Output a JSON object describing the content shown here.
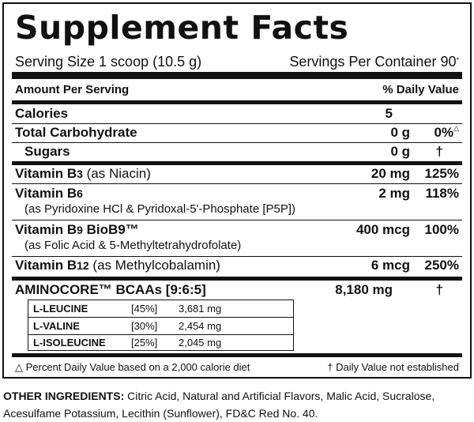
{
  "title": "Supplement Facts",
  "serving_size": "Serving Size 1 scoop (10.5 g)",
  "servings_per_container": "Servings Per Container 90",
  "servings_marker": "*",
  "header": {
    "amount_per_serving": "Amount Per Serving",
    "daily_value": "% Daily Value"
  },
  "rows": {
    "calories": {
      "name": "Calories",
      "amount": "5",
      "dv": ""
    },
    "carb": {
      "name": "Total Carbohydrate",
      "amount": "0 g",
      "dv": "0%",
      "dv_marker": "△"
    },
    "sugars": {
      "name": "Sugars",
      "amount": "0 g",
      "dv": "†"
    },
    "b3": {
      "name": "Vitamin B",
      "sub": "3",
      "detail": "(as Niacin)",
      "amount": "20 mg",
      "dv": "125%"
    },
    "b6": {
      "name": "Vitamin B",
      "sub": "6",
      "detail": "(as Pyridoxine HCl & Pyridoxal-5'-Phosphate [P5P])",
      "amount": "2 mg",
      "dv": "118%"
    },
    "b9": {
      "name": "Vitamin B",
      "sub": "9",
      "brand": "BioB9™",
      "detail": "(as Folic Acid & 5-Methyltetrahydrofolate)",
      "amount": "400 mcg",
      "dv": "100%"
    },
    "b12": {
      "name": "Vitamin B",
      "sub": "12",
      "detail": "(as Methylcobalamin)",
      "amount": "6 mcg",
      "dv": "250%"
    },
    "aminocore": {
      "name": "AMINOCORE™ BCAAs [9:6:5]",
      "amount": "8,180 mg",
      "dv": "†"
    }
  },
  "bcaas": [
    {
      "name": "L-LEUCINE",
      "percent": "[45%]",
      "amount": "3,681 mg"
    },
    {
      "name": "L-VALINE",
      "percent": "[30%]",
      "amount": "2,454 mg"
    },
    {
      "name": "L-ISOLEUCINE",
      "percent": "[25%]",
      "amount": "2,045 mg"
    }
  ],
  "footnotes": {
    "left": "△ Percent Daily Value based on a 2,000 calorie diet",
    "right": "† Daily Value not established"
  },
  "other_ingredients": {
    "label": "OTHER INGREDIENTS:",
    "text": "Citric Acid, Natural and Artificial Flavors, Malic Acid, Sucralose, Acesulfame Potassium, Lecithin (Sunflower), FD&C Red No. 40."
  }
}
